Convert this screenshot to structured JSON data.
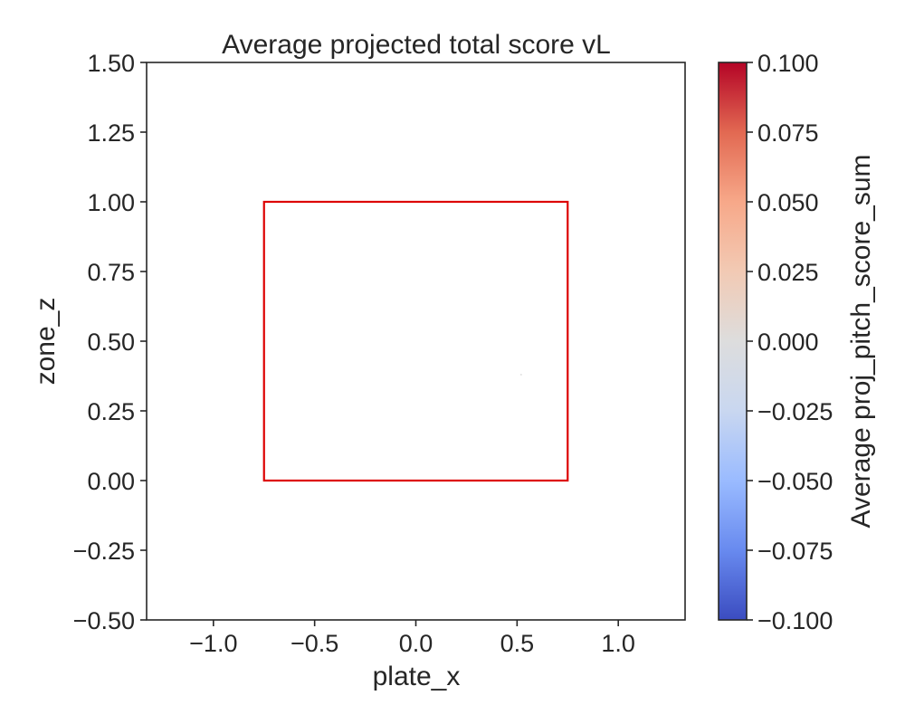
{
  "chart_data": {
    "type": "heatmap",
    "title": "Average projected total score vL",
    "xlabel": "plate_x",
    "ylabel": "zone_z",
    "xlim": [
      -1.33,
      1.33
    ],
    "ylim": [
      -0.5,
      1.5
    ],
    "x_ticks": [
      -1.0,
      -0.5,
      0.0,
      0.5,
      1.0
    ],
    "x_tick_labels": [
      "−1.0",
      "−0.5",
      "0.0",
      "0.5",
      "1.0"
    ],
    "y_ticks": [
      -0.5,
      -0.25,
      0.0,
      0.25,
      0.5,
      0.75,
      1.0,
      1.25,
      1.5
    ],
    "y_tick_labels": [
      "−0.50",
      "−0.25",
      "0.00",
      "0.25",
      "0.50",
      "0.75",
      "1.00",
      "1.25",
      "1.50"
    ],
    "grid": false,
    "strike_zone": {
      "x": [
        -0.75,
        0.75
      ],
      "z": [
        0.0,
        1.0
      ],
      "color": "#dd0000"
    },
    "points": [
      {
        "x": 0.52,
        "z": 0.38,
        "value": 0.0
      }
    ],
    "colorbar": {
      "label": "Average proj_pitch_score_sum",
      "colormap": "coolwarm",
      "range": [
        -0.1,
        0.1
      ],
      "ticks": [
        -0.1,
        -0.075,
        -0.05,
        -0.025,
        0.0,
        0.025,
        0.05,
        0.075,
        0.1
      ],
      "tick_labels": [
        "−0.100",
        "−0.075",
        "−0.050",
        "−0.025",
        "0.000",
        "0.025",
        "0.050",
        "0.075",
        "0.100"
      ],
      "colors": [
        "#3b4cc0",
        "#688aef",
        "#9abbff",
        "#c9d7f0",
        "#dddddd",
        "#f2cab4",
        "#f7a889",
        "#e26952",
        "#b40426"
      ]
    }
  }
}
